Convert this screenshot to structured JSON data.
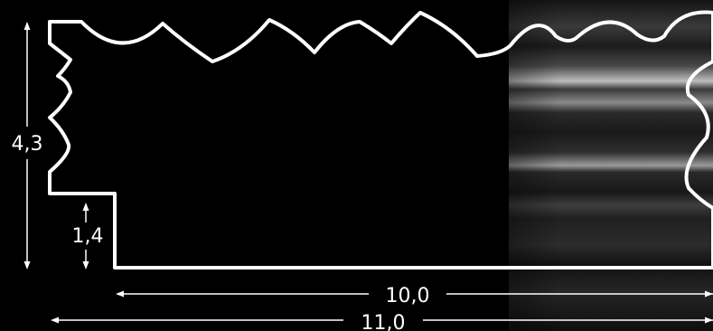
{
  "figure": {
    "description_visible": false,
    "colors": {
      "background": "#000000",
      "profile_outline": "#ffffff",
      "dimension_lines": "#ffffff",
      "label_text": "#ffffff",
      "photo_base": "#1a1a1a",
      "photo_highlight": "#bdbdbd"
    }
  },
  "dimensions": {
    "total_height": "4,3",
    "step_height": "1,4",
    "inner_width": "10,0",
    "total_width": "11,0"
  }
}
